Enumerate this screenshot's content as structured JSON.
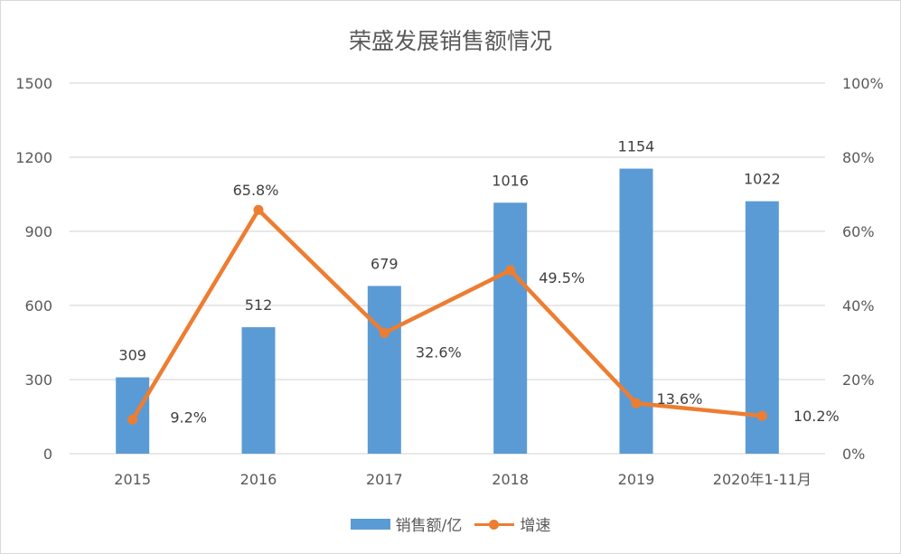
{
  "title": "荣盛发展销售额情况",
  "legend": {
    "bar_label": "销售额/亿",
    "line_label": "增速"
  },
  "colors": {
    "bar": "#5b9bd5",
    "line": "#ed7d31",
    "grid": "#d9d9d9",
    "text": "#595959"
  },
  "axes": {
    "left_ticks": [
      "0",
      "300",
      "600",
      "900",
      "1200",
      "1500"
    ],
    "right_ticks": [
      "0%",
      "20%",
      "40%",
      "60%",
      "80%",
      "100%"
    ]
  },
  "chart_data": {
    "type": "bar",
    "title": "荣盛发展销售额情况",
    "categories": [
      "2015",
      "2016",
      "2017",
      "2018",
      "2019",
      "2020年1-11月"
    ],
    "series": [
      {
        "name": "销售额/亿",
        "type": "bar",
        "axis": "left",
        "values": [
          309,
          512,
          679,
          1016,
          1154,
          1022
        ],
        "labels": [
          "309",
          "512",
          "679",
          "1016",
          "1154",
          "1022"
        ]
      },
      {
        "name": "增速",
        "type": "line",
        "axis": "right",
        "values": [
          9.2,
          65.8,
          32.6,
          49.5,
          13.6,
          10.2
        ],
        "labels": [
          "9.2%",
          "65.8%",
          "32.6%",
          "49.5%",
          "13.6%",
          "10.2%"
        ]
      }
    ],
    "xlabel": "",
    "ylabel": "",
    "y2label": "",
    "ylim": [
      0,
      1500
    ],
    "y2lim": [
      0,
      100
    ],
    "yticks": [
      0,
      300,
      600,
      900,
      1200,
      1500
    ],
    "y2ticks": [
      "0%",
      "20%",
      "40%",
      "60%",
      "80%",
      "100%"
    ],
    "grid": true,
    "legend_position": "bottom"
  }
}
